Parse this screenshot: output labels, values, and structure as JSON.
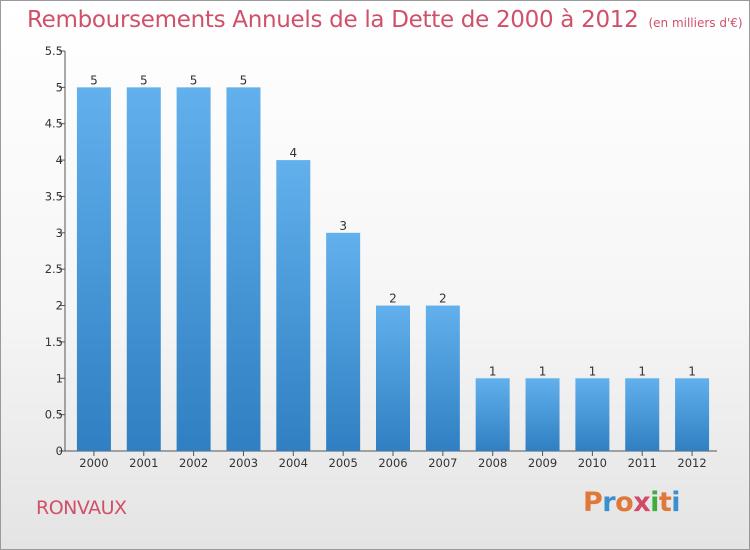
{
  "header": {
    "title": "Remboursements Annuels de la Dette de 2000 à 2012",
    "unit": "(en milliers d'€)"
  },
  "footer": {
    "commune": "RONVAUX",
    "logo_text": "Proxiti",
    "logo_colors": [
      "#e0783a",
      "#3a8fd0",
      "#e0783a",
      "#d24a6a",
      "#3fae3f",
      "#e0783a",
      "#3a8fd0"
    ]
  },
  "colors": {
    "title": "#d0506a",
    "bar_light": "#62b0ec",
    "bar_dark": "#2f7fc2",
    "axis": "#555555"
  },
  "chart_data": {
    "type": "bar",
    "categories": [
      "2000",
      "2001",
      "2002",
      "2003",
      "2004",
      "2005",
      "2006",
      "2007",
      "2008",
      "2009",
      "2010",
      "2011",
      "2012"
    ],
    "values": [
      5,
      5,
      5,
      5,
      4,
      3,
      2,
      2,
      1,
      1,
      1,
      1,
      1
    ],
    "data_labels": [
      "5",
      "5",
      "5",
      "5",
      "4",
      "3",
      "2",
      "2",
      "1",
      "1",
      "1",
      "1",
      "1"
    ],
    "yticks": [
      "0",
      "0.5",
      "1",
      "1.5",
      "2",
      "2.5",
      "3",
      "3.5",
      "4",
      "4.5",
      "5",
      "5.5"
    ],
    "ylim": [
      0,
      5.5
    ],
    "grid": false,
    "legend": "none"
  }
}
